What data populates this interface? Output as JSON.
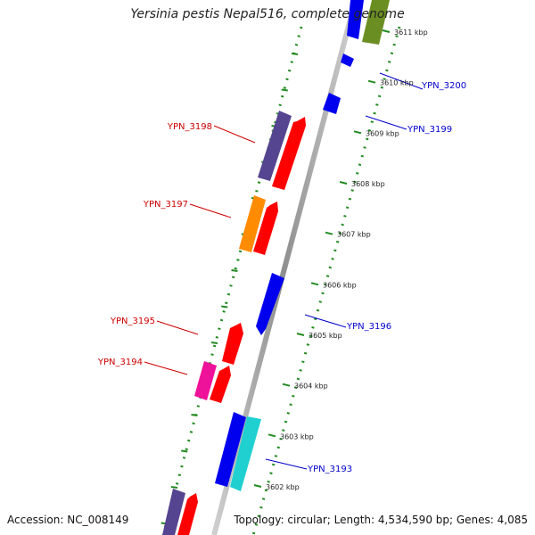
{
  "title": "Yersinia pestis Nepal516, complete genome",
  "footer": {
    "accession": "Accession: NC_008149",
    "summary": "Topology: circular; Length: 4,534,590 bp; Genes: 4,085"
  },
  "colors": {
    "red": "#ff0000",
    "blue": "#0000ee",
    "purple": "#55448f",
    "orange": "#ff8c00",
    "magenta": "#ee1199",
    "cyan": "#20d0d0",
    "olive": "#6b8e23",
    "label_red": "#cc0000",
    "label_blue": "#0000cc",
    "tick_green": "#228b22"
  },
  "ticks": [
    {
      "label": "3602 kbp",
      "kbp": 3602
    },
    {
      "label": "3603 kbp",
      "kbp": 3603
    },
    {
      "label": "3604 kbp",
      "kbp": 3604
    },
    {
      "label": "3605 kbp",
      "kbp": 3605
    },
    {
      "label": "3606 kbp",
      "kbp": 3606
    },
    {
      "label": "3607 kbp",
      "kbp": 3607
    },
    {
      "label": "3608 kbp",
      "kbp": 3608
    },
    {
      "label": "3609 kbp",
      "kbp": 3609
    },
    {
      "label": "3610 kbp",
      "kbp": 3610
    },
    {
      "label": "3611 kbp",
      "kbp": 3611
    }
  ],
  "gene_labels": [
    {
      "text": "YPN_3198",
      "color": "label_red"
    },
    {
      "text": "YPN_3197",
      "color": "label_red"
    },
    {
      "text": "YPN_3195",
      "color": "label_red"
    },
    {
      "text": "YPN_3194",
      "color": "label_red"
    },
    {
      "text": "YPN_3200",
      "color": "label_blue"
    },
    {
      "text": "YPN_3199",
      "color": "label_blue"
    },
    {
      "text": "YPN_3196",
      "color": "label_blue"
    },
    {
      "text": "YPN_3193",
      "color": "label_blue"
    }
  ]
}
